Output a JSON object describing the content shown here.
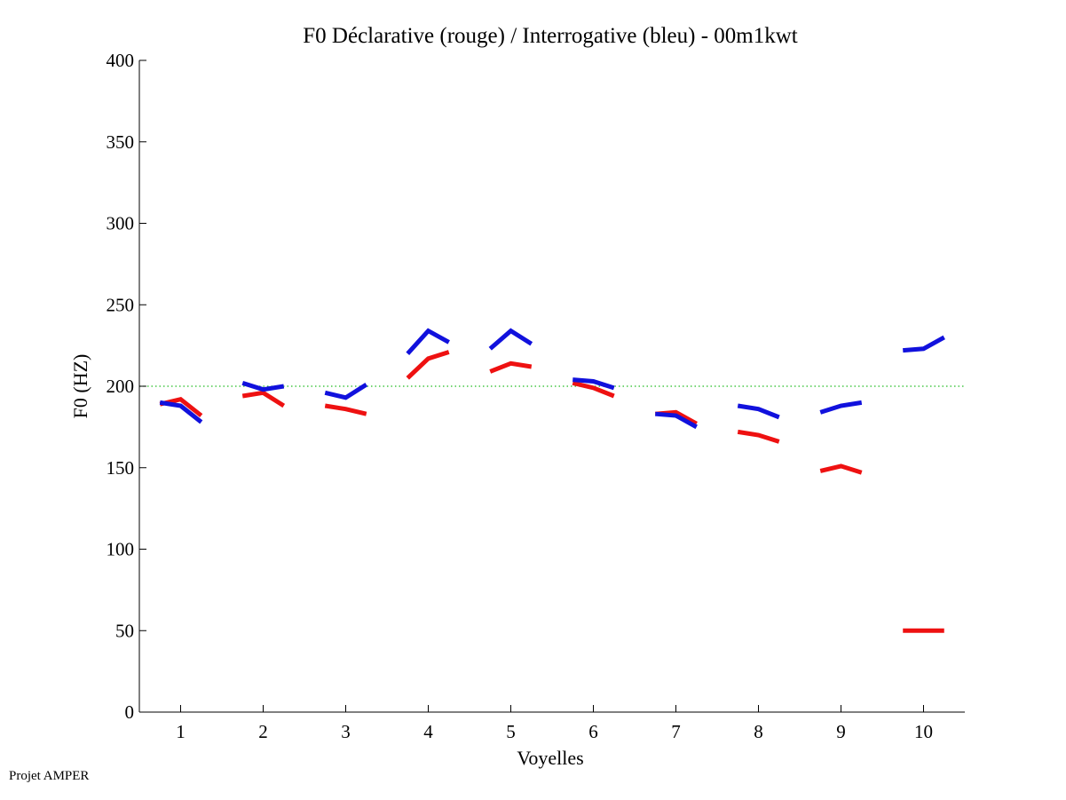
{
  "footer": "Projet AMPER",
  "colors": {
    "declarative": "#ee1111",
    "interrogative": "#1111dd",
    "reference": "#22bb22",
    "axis": "#000000"
  },
  "chart_data": {
    "type": "line",
    "title": "F0 Déclarative (rouge) / Interrogative (bleu) - 00m1kwt",
    "xlabel": "Voyelles",
    "ylabel": "F0 (HZ)",
    "xlim": [
      0.5,
      10.5
    ],
    "ylim": [
      0,
      400
    ],
    "xticks": [
      1,
      2,
      3,
      4,
      5,
      6,
      7,
      8,
      9,
      10
    ],
    "xtick_labels": [
      "1",
      "2",
      "3",
      "4",
      "5",
      "6",
      "7",
      "8",
      "9",
      "10"
    ],
    "yticks": [
      0,
      50,
      100,
      150,
      200,
      250,
      300,
      350,
      400
    ],
    "ytick_labels": [
      "0",
      "50",
      "100",
      "150",
      "200",
      "250",
      "300",
      "350",
      "400"
    ],
    "grid": false,
    "reference_line": {
      "y": 200,
      "style": "dotted"
    },
    "point_offsets": [
      -0.25,
      0,
      0.25
    ],
    "series": [
      {
        "key": "declarative",
        "segments": [
          [
            189,
            192,
            182
          ],
          [
            194,
            196,
            188
          ],
          [
            188,
            186,
            183
          ],
          [
            205,
            217,
            221
          ],
          [
            209,
            214,
            212
          ],
          [
            202,
            199,
            194
          ],
          [
            183,
            184,
            177
          ],
          [
            172,
            170,
            166
          ],
          [
            148,
            151,
            147
          ],
          [
            50,
            50,
            50
          ]
        ]
      },
      {
        "key": "interrogative",
        "segments": [
          [
            190,
            188,
            178
          ],
          [
            202,
            198,
            200
          ],
          [
            196,
            193,
            201
          ],
          [
            220,
            234,
            227
          ],
          [
            223,
            234,
            226
          ],
          [
            204,
            203,
            199
          ],
          [
            183,
            182,
            175
          ],
          [
            188,
            186,
            181
          ],
          [
            184,
            188,
            190
          ],
          [
            222,
            223,
            230
          ]
        ]
      }
    ]
  }
}
